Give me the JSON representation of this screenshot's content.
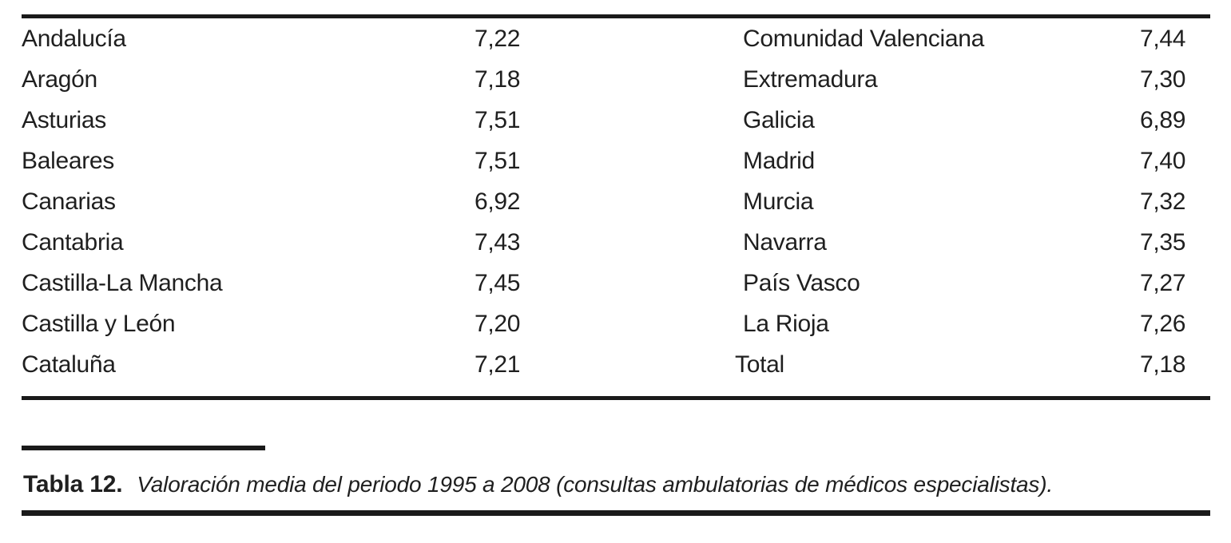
{
  "table": {
    "rows": [
      {
        "left_label": "Andalucía",
        "left_value": "7,22",
        "right_label": "Comunidad Valenciana",
        "right_value": "7,44"
      },
      {
        "left_label": "Aragón",
        "left_value": "7,18",
        "right_label": "Extremadura",
        "right_value": "7,30"
      },
      {
        "left_label": "Asturias",
        "left_value": "7,51",
        "right_label": "Galicia",
        "right_value": "6,89"
      },
      {
        "left_label": "Baleares",
        "left_value": "7,51",
        "right_label": "Madrid",
        "right_value": "7,40"
      },
      {
        "left_label": "Canarias",
        "left_value": "6,92",
        "right_label": "Murcia",
        "right_value": "7,32"
      },
      {
        "left_label": "Cantabria",
        "left_value": "7,43",
        "right_label": "Navarra",
        "right_value": "7,35"
      },
      {
        "left_label": "Castilla-La Mancha",
        "left_value": "7,45",
        "right_label": "País Vasco",
        "right_value": "7,27"
      },
      {
        "left_label": "Castilla y León",
        "left_value": "7,20",
        "right_label": "La Rioja",
        "right_value": "7,26"
      },
      {
        "left_label": "Cataluña",
        "left_value": "7,21",
        "right_label": "Total",
        "right_value": "7,18"
      }
    ]
  },
  "caption": {
    "label": "Tabla 12.",
    "text": "Valoración media del periodo 1995 a 2008 (consultas ambulatorias de médicos especialistas)."
  },
  "colors": {
    "text": "#1f1f1f",
    "rule": "#1a1a1a",
    "background": "#ffffff"
  }
}
